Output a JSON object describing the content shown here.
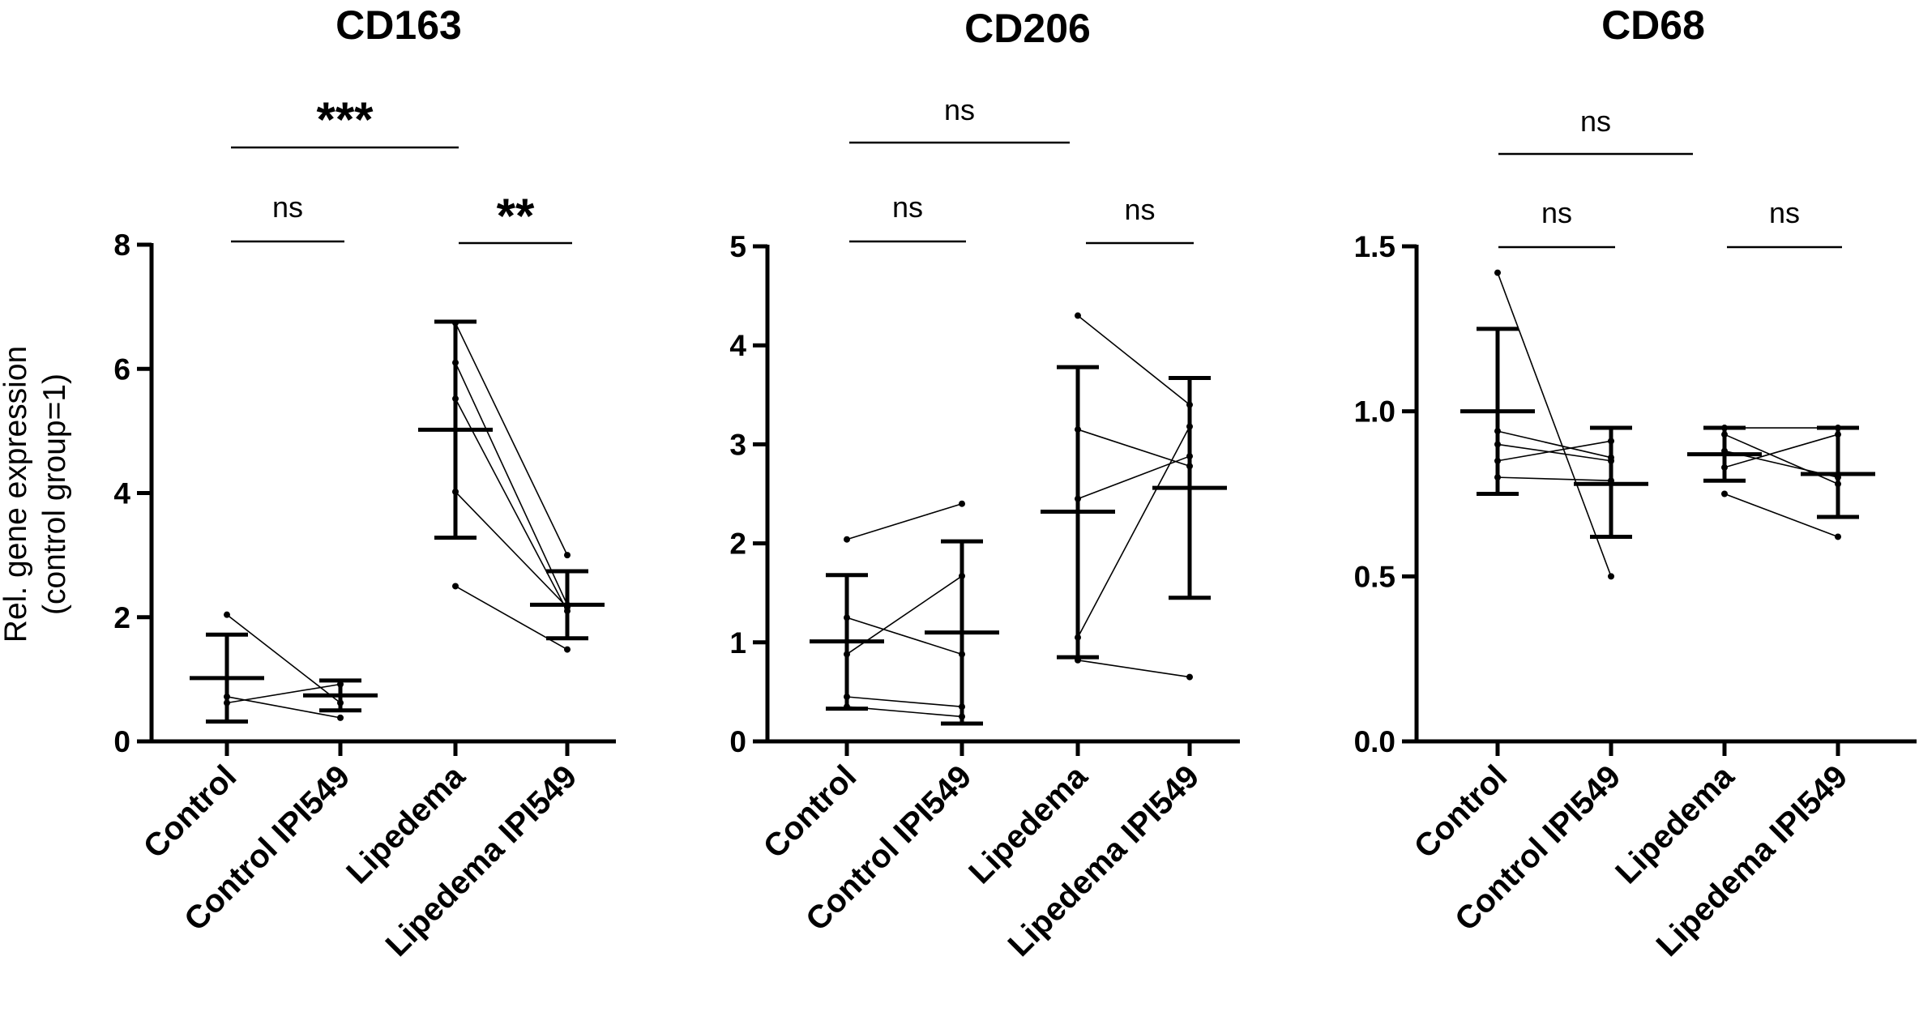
{
  "chart_data": {
    "type": "scatter",
    "ylabel_lines": [
      "Rel. gene expression",
      "(control group=1)"
    ],
    "categories": [
      "Control",
      "Control IPI549",
      "Lipedema",
      "Lipedema IPI549"
    ],
    "panels": [
      {
        "title": "CD163",
        "ylim": [
          0,
          8
        ],
        "yticks": [
          0,
          2,
          4,
          6,
          8
        ],
        "ytick_labels": [
          "0",
          "2",
          "4",
          "6",
          "8"
        ],
        "summary": [
          {
            "group": "Control",
            "mean": 1.02,
            "err_low": 0.32,
            "err_high": 1.72
          },
          {
            "group": "Control IPI549",
            "mean": 0.74,
            "err_low": 0.5,
            "err_high": 0.98
          },
          {
            "group": "Lipedema",
            "mean": 5.02,
            "err_low": 3.28,
            "err_high": 6.76
          },
          {
            "group": "Lipedema IPI549",
            "mean": 2.2,
            "err_low": 1.66,
            "err_high": 2.74
          }
        ],
        "paired_samples": [
          {
            "from_group": "Control",
            "to_group": "Control IPI549",
            "pairs": [
              [
                2.04,
                0.62
              ],
              [
                0.62,
                0.92
              ],
              [
                0.72,
                0.38
              ]
            ]
          },
          {
            "from_group": "Lipedema",
            "to_group": "Lipedema IPI549",
            "pairs": [
              [
                6.74,
                3.0
              ],
              [
                6.1,
                2.2
              ],
              [
                5.52,
                2.1
              ],
              [
                4.02,
                2.16
              ],
              [
                2.5,
                1.48
              ]
            ]
          }
        ],
        "comparisons": [
          {
            "from_group": "Control",
            "to_group": "Lipedema",
            "label": "***"
          },
          {
            "from_group": "Control",
            "to_group": "Control IPI549",
            "label": "ns"
          },
          {
            "from_group": "Lipedema",
            "to_group": "Lipedema IPI549",
            "label": "**"
          }
        ]
      },
      {
        "title": "CD206",
        "ylim": [
          0,
          5
        ],
        "yticks": [
          0,
          1,
          2,
          3,
          4,
          5
        ],
        "ytick_labels": [
          "0",
          "1",
          "2",
          "3",
          "4",
          "5"
        ],
        "summary": [
          {
            "group": "Control",
            "mean": 1.01,
            "err_low": 0.33,
            "err_high": 1.68
          },
          {
            "group": "Control IPI549",
            "mean": 1.1,
            "err_low": 0.18,
            "err_high": 2.02
          },
          {
            "group": "Lipedema",
            "mean": 2.32,
            "err_low": 0.85,
            "err_high": 3.78
          },
          {
            "group": "Lipedema IPI549",
            "mean": 2.56,
            "err_low": 1.45,
            "err_high": 3.67
          }
        ],
        "paired_samples": [
          {
            "from_group": "Control",
            "to_group": "Control IPI549",
            "pairs": [
              [
                2.04,
                2.4
              ],
              [
                1.25,
                0.88
              ],
              [
                0.45,
                0.35
              ],
              [
                0.35,
                0.25
              ],
              [
                0.88,
                1.67
              ]
            ]
          },
          {
            "from_group": "Lipedema",
            "to_group": "Lipedema IPI549",
            "pairs": [
              [
                4.3,
                3.4
              ],
              [
                3.15,
                2.78
              ],
              [
                2.45,
                2.88
              ],
              [
                0.82,
                0.65
              ],
              [
                1.05,
                3.18
              ]
            ]
          }
        ],
        "comparisons": [
          {
            "from_group": "Control",
            "to_group": "Lipedema",
            "label": "ns"
          },
          {
            "from_group": "Control",
            "to_group": "Control IPI549",
            "label": "ns"
          },
          {
            "from_group": "Lipedema",
            "to_group": "Lipedema IPI549",
            "label": "ns"
          }
        ]
      },
      {
        "title": "CD68",
        "ylim": [
          0,
          1.5
        ],
        "yticks": [
          0,
          0.5,
          1.0,
          1.5
        ],
        "ytick_labels": [
          "0.0",
          "0.5",
          "1.0",
          "1.5"
        ],
        "summary": [
          {
            "group": "Control",
            "mean": 1.0,
            "err_low": 0.75,
            "err_high": 1.25
          },
          {
            "group": "Control IPI549",
            "mean": 0.78,
            "err_low": 0.62,
            "err_high": 0.95
          },
          {
            "group": "Lipedema",
            "mean": 0.87,
            "err_low": 0.79,
            "err_high": 0.95
          },
          {
            "group": "Lipedema IPI549",
            "mean": 0.81,
            "err_low": 0.68,
            "err_high": 0.95
          }
        ],
        "paired_samples": [
          {
            "from_group": "Control",
            "to_group": "Control IPI549",
            "pairs": [
              [
                1.42,
                0.5
              ],
              [
                0.94,
                0.86
              ],
              [
                0.85,
                0.91
              ],
              [
                0.8,
                0.79
              ],
              [
                0.9,
                0.85
              ]
            ]
          },
          {
            "from_group": "Lipedema",
            "to_group": "Lipedema IPI549",
            "pairs": [
              [
                0.95,
                0.95
              ],
              [
                0.93,
                0.78
              ],
              [
                0.88,
                0.8
              ],
              [
                0.83,
                0.93
              ],
              [
                0.75,
                0.62
              ]
            ]
          }
        ],
        "comparisons": [
          {
            "from_group": "Control",
            "to_group": "Lipedema",
            "label": "ns"
          },
          {
            "from_group": "Control",
            "to_group": "Control IPI549",
            "label": "ns"
          },
          {
            "from_group": "Lipedema",
            "to_group": "Lipedema IPI549",
            "label": "ns"
          }
        ]
      }
    ]
  }
}
